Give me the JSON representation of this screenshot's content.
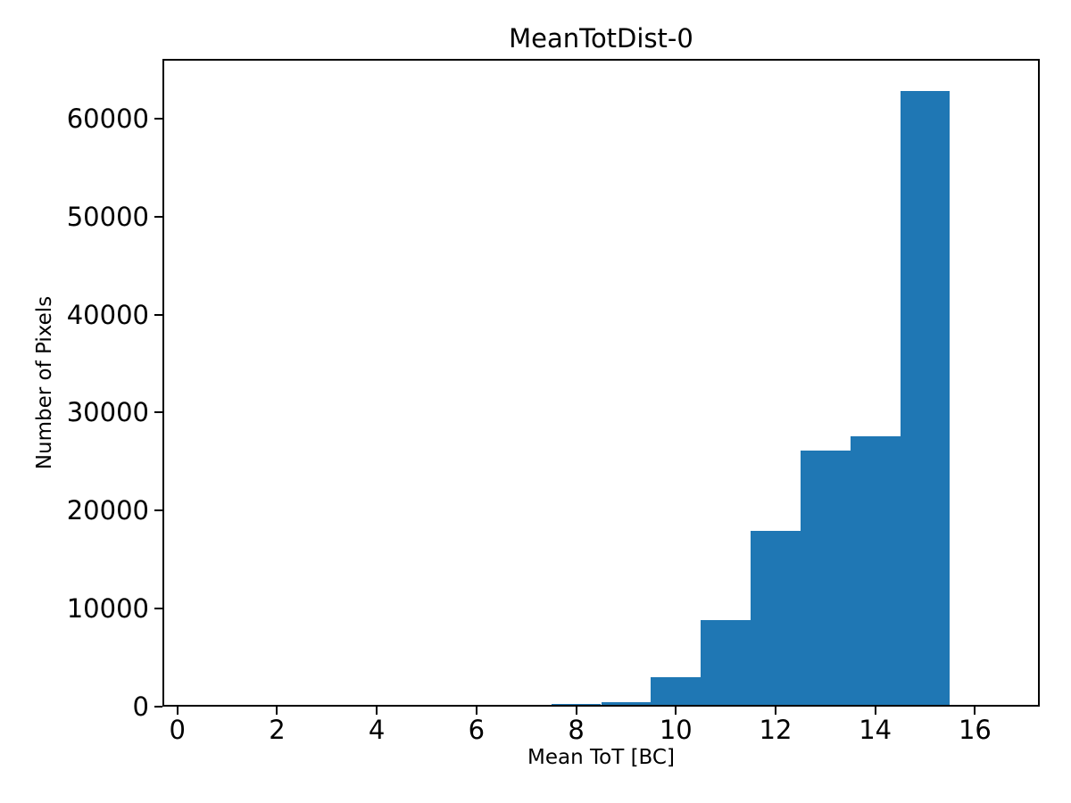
{
  "chart_data": {
    "type": "bar",
    "subtype": "histogram",
    "title": "MeanTotDist-0",
    "xlabel": "Mean ToT [BC]",
    "ylabel": "Number of Pixels",
    "bin_edges": [
      7.5,
      8.5,
      9.5,
      10.5,
      11.5,
      12.5,
      13.5,
      14.5,
      15.5
    ],
    "counts": [
      270,
      460,
      3000,
      8830,
      17940,
      26130,
      27590,
      62830
    ],
    "bar_color": "#1f77b4",
    "xlim": [
      -0.3,
      17.3
    ],
    "ylim": [
      0,
      66100
    ],
    "x_ticks": [
      0,
      2,
      4,
      6,
      8,
      10,
      12,
      14,
      16
    ],
    "y_ticks": [
      0,
      10000,
      20000,
      30000,
      40000,
      50000,
      60000
    ],
    "grid": false,
    "legend_position": "none",
    "text_color": "#000000",
    "spine_color": "#000000"
  }
}
